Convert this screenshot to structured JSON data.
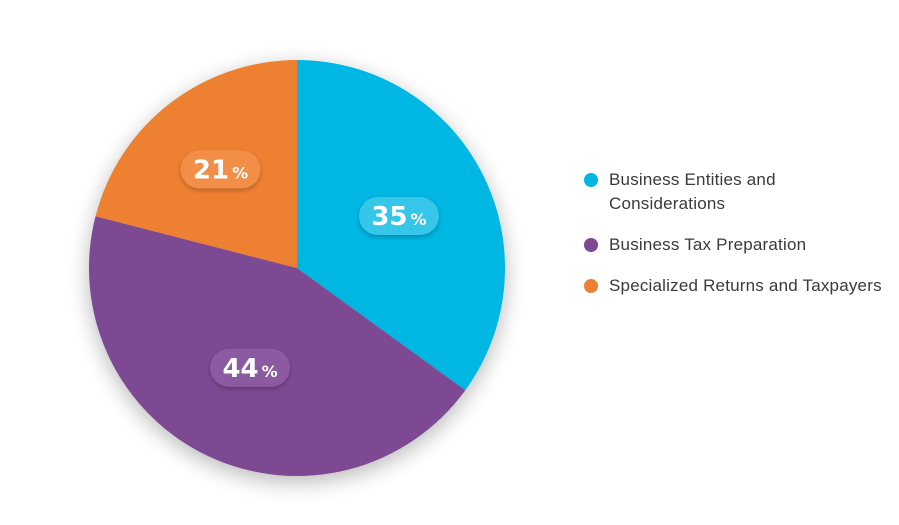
{
  "chart_data": {
    "type": "pie",
    "title": "",
    "legend_position": "right",
    "slices": [
      {
        "label": "Business Entities and Considerations",
        "value": 35,
        "value_label": "35",
        "unit": "%",
        "color": "#00b6e3",
        "badge_color": "#35c6ea"
      },
      {
        "label": "Business Tax Preparation",
        "value": 44,
        "value_label": "44",
        "unit": "%",
        "color": "#7d4a92",
        "badge_color": "#8b5aa0"
      },
      {
        "label": "Specialized Returns and Taxpayers",
        "value": 21,
        "value_label": "21",
        "unit": "%",
        "color": "#ee8033",
        "badge_color": "#f28e47"
      }
    ]
  }
}
